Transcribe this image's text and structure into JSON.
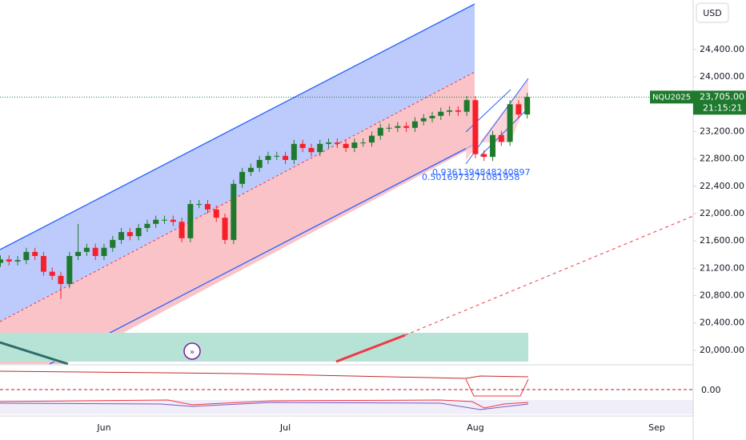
{
  "chart_data": {
    "type": "candlestick",
    "symbol": "NQU2025",
    "currency": "USD",
    "last_price": {
      "value": 23705,
      "label": "23,705.00"
    },
    "countdown": "21:15:21",
    "annotations": [
      "0.9361394848240897",
      "0.5016973271081958"
    ],
    "indicator_label": "0.00",
    "categories": [
      null,
      null,
      null,
      null,
      null,
      null,
      null,
      null,
      null,
      null,
      null,
      null,
      "Jun",
      null,
      null,
      null,
      null,
      null,
      null,
      null,
      null,
      null,
      null,
      null,
      null,
      null,
      null,
      null,
      null,
      null,
      null,
      null,
      null,
      "Jul",
      null,
      null,
      null,
      null,
      null,
      null,
      null,
      null,
      null,
      null,
      null,
      null,
      null,
      null,
      null,
      null,
      null,
      null,
      null,
      null,
      null,
      "Aug",
      null,
      null,
      null,
      null,
      null,
      null,
      null,
      null,
      null,
      null,
      null,
      null,
      null,
      null,
      null,
      null,
      null,
      null,
      null,
      null,
      "Sep"
    ],
    "open": [
      21280,
      21330,
      21300,
      21320,
      21440,
      21380,
      21150,
      21090,
      20970,
      21380,
      21440,
      21500,
      21380,
      21500,
      21615,
      21730,
      21670,
      21790,
      21850,
      21910,
      21910,
      21880,
      21640,
      22140,
      22140,
      22060,
      21940,
      21615,
      22435,
      22610,
      22670,
      22785,
      22845,
      22845,
      22785,
      23020,
      22960,
      22900,
      23020,
      23040,
      23020,
      22960,
      23040,
      23040,
      23140,
      23255,
      23255,
      23280,
      23255,
      23350,
      23395,
      23430,
      23490,
      23510,
      23490,
      23660,
      22870,
      22830,
      23150,
      23050,
      23600,
      23450,
      null,
      null,
      null,
      null,
      null,
      null,
      null,
      null,
      null,
      null,
      null,
      null,
      null,
      null,
      null
    ],
    "high": [
      21390,
      21390,
      21380,
      21500,
      21500,
      21440,
      21210,
      21150,
      21440,
      21850,
      21560,
      21560,
      21560,
      21675,
      21790,
      21790,
      21850,
      21910,
      21970,
      21970,
      21970,
      21940,
      22200,
      22200,
      22200,
      22120,
      22000,
      22495,
      22670,
      22730,
      22845,
      22905,
      22905,
      22905,
      23080,
      23080,
      23020,
      23080,
      23100,
      23100,
      23080,
      23100,
      23100,
      23200,
      23315,
      23315,
      23340,
      23340,
      23410,
      23455,
      23490,
      23550,
      23570,
      23570,
      23720,
      23720,
      22930,
      23210,
      23210,
      23660,
      23660,
      23765,
      null,
      null,
      null,
      null,
      null,
      null,
      null,
      null,
      null,
      null,
      null,
      null,
      null,
      null,
      null
    ],
    "low": [
      21220,
      21240,
      21240,
      21260,
      21320,
      21090,
      21030,
      20750,
      20910,
      21320,
      21380,
      21320,
      21320,
      21440,
      21555,
      21610,
      21610,
      21730,
      21790,
      21850,
      21820,
      21580,
      21580,
      22080,
      22000,
      21880,
      21555,
      21555,
      22375,
      22550,
      22610,
      22725,
      22785,
      22725,
      22725,
      22900,
      22840,
      22840,
      22960,
      22960,
      22900,
      22900,
      22980,
      22980,
      23080,
      23195,
      23195,
      23195,
      23195,
      23290,
      23335,
      23370,
      23430,
      23430,
      23430,
      22810,
      22770,
      22770,
      22990,
      22990,
      23390,
      23390,
      null,
      null,
      null,
      null,
      null,
      null,
      null,
      null,
      null,
      null,
      null,
      null,
      null,
      null,
      null
    ],
    "close": [
      21330,
      21300,
      21320,
      21440,
      21380,
      21150,
      21090,
      20970,
      21380,
      21440,
      21500,
      21380,
      21500,
      21615,
      21730,
      21670,
      21790,
      21850,
      21910,
      21910,
      21880,
      21640,
      22140,
      22140,
      22060,
      21940,
      21615,
      22435,
      22610,
      22670,
      22785,
      22845,
      22845,
      22785,
      23020,
      22960,
      22900,
      23020,
      23040,
      23020,
      22960,
      23040,
      23040,
      23140,
      23255,
      23255,
      23280,
      23255,
      23350,
      23395,
      23430,
      23490,
      23510,
      23490,
      23660,
      22870,
      22830,
      23150,
      23050,
      23600,
      23450,
      23705,
      null,
      null,
      null,
      null,
      null,
      null,
      null,
      null,
      null,
      null,
      null,
      null,
      null,
      null,
      null
    ],
    "up_color": "#1f7a2e",
    "down_color": "#f7202a",
    "ylim": [
      19800,
      25125
    ],
    "yticks": [
      {
        "value": 20000,
        "label": "20,000.00"
      },
      {
        "value": 20400,
        "label": "20,400.00"
      },
      {
        "value": 20800,
        "label": "20,800.00"
      },
      {
        "value": 21200,
        "label": "21,200.00"
      },
      {
        "value": 21600,
        "label": "21,600.00"
      },
      {
        "value": 22000,
        "label": "22,000.00"
      },
      {
        "value": 22400,
        "label": "22,400.00"
      },
      {
        "value": 22800,
        "label": "22,800.00"
      },
      {
        "value": 23200,
        "label": "23,200.00"
      },
      {
        "value": 23600,
        "label": "23,600.00"
      },
      {
        "value": 24000,
        "label": "24,000.00"
      },
      {
        "value": 24400,
        "label": "24,400.00"
      }
    ]
  }
}
